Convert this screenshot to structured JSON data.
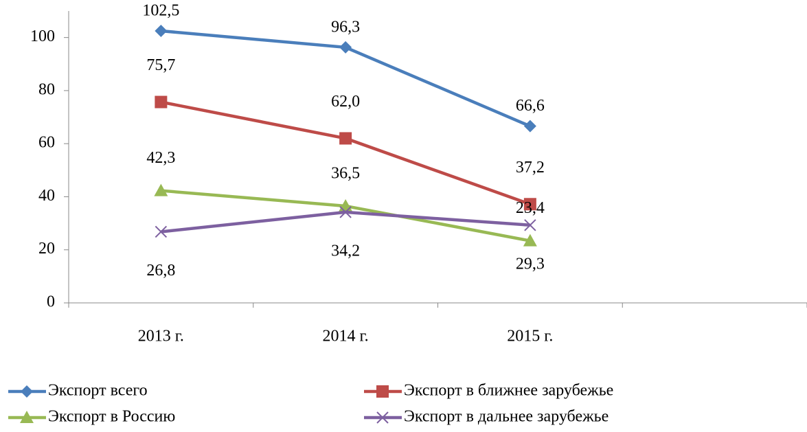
{
  "chart_data": {
    "type": "line",
    "categories": [
      "2013 г.",
      "2014 г.",
      "2015 г.",
      null
    ],
    "series": [
      {
        "name": "Экспорт всего",
        "color": "#4a7ebb",
        "marker": "diamond",
        "values": [
          102.5,
          96.3,
          66.6,
          null
        ],
        "value_labels": [
          "102,5",
          "96,3",
          "66,6",
          null
        ]
      },
      {
        "name": "Экспорт в ближнее зарубежье",
        "color": "#be4b48",
        "marker": "square",
        "values": [
          75.7,
          62.0,
          37.2,
          null
        ],
        "value_labels": [
          "75,7",
          "62,0",
          "37,2",
          null
        ]
      },
      {
        "name": "Экспорт в Россию",
        "color": "#98b954",
        "marker": "triangle",
        "values": [
          42.3,
          36.5,
          23.4,
          null
        ],
        "value_labels": [
          "42,3",
          "36,5",
          "23,4",
          null
        ]
      },
      {
        "name": "Экспорт в дальнее зарубежье",
        "color": "#7d60a0",
        "marker": "x",
        "values": [
          26.8,
          34.2,
          29.3,
          null
        ],
        "value_labels": [
          "26,8",
          "34,2",
          "29,3",
          null
        ]
      }
    ],
    "ylim": [
      0,
      110
    ],
    "yticks": [
      0,
      20,
      40,
      60,
      80,
      100
    ],
    "grid": false,
    "legend": "bottom"
  }
}
